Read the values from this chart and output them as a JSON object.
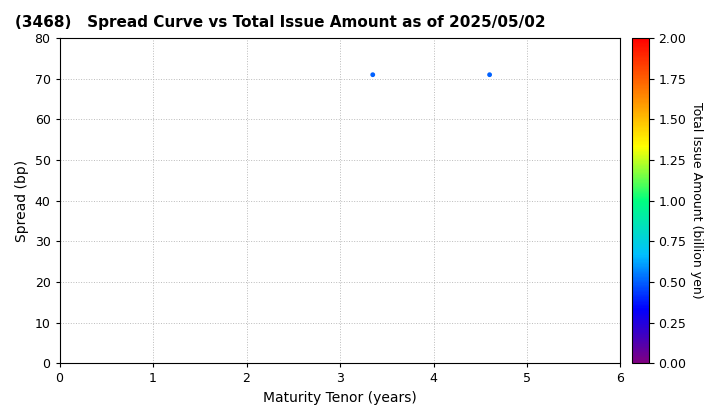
{
  "title": "(3468)   Spread Curve vs Total Issue Amount as of 2025/05/02",
  "xlabel": "Maturity Tenor (years)",
  "ylabel": "Spread (bp)",
  "colorbar_label": "Total Issue Amount (billion yen)",
  "xlim": [
    0,
    6
  ],
  "ylim": [
    0,
    80
  ],
  "xticks": [
    0,
    1,
    2,
    3,
    4,
    5,
    6
  ],
  "yticks": [
    0,
    10,
    20,
    30,
    40,
    50,
    60,
    70,
    80
  ],
  "colorbar_min": 0.0,
  "colorbar_max": 2.0,
  "colorbar_ticks": [
    0.0,
    0.25,
    0.5,
    0.75,
    1.0,
    1.25,
    1.5,
    1.75,
    2.0
  ],
  "scatter_x": [
    3.35,
    4.6
  ],
  "scatter_y": [
    71,
    71
  ],
  "scatter_values": [
    0.5,
    0.5
  ],
  "scatter_size": 12,
  "grid_color": "#bbbbbb",
  "grid_linestyle": ":",
  "background_color": "#ffffff",
  "title_fontsize": 11,
  "axis_label_fontsize": 10,
  "tick_fontsize": 9,
  "colorbar_tick_fontsize": 9,
  "colorbar_label_fontsize": 9
}
